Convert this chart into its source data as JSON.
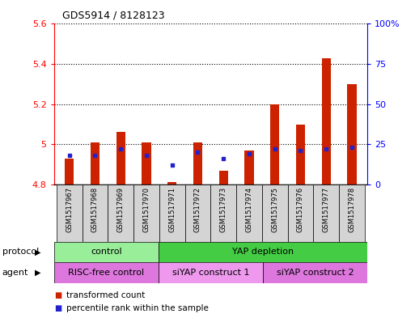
{
  "title": "GDS5914 / 8128123",
  "samples": [
    "GSM1517967",
    "GSM1517968",
    "GSM1517969",
    "GSM1517970",
    "GSM1517971",
    "GSM1517972",
    "GSM1517973",
    "GSM1517974",
    "GSM1517975",
    "GSM1517976",
    "GSM1517977",
    "GSM1517978"
  ],
  "transformed_count": [
    4.93,
    5.01,
    5.06,
    5.01,
    4.81,
    5.01,
    4.87,
    4.97,
    5.2,
    5.1,
    5.43,
    5.3
  ],
  "percentile_rank": [
    18,
    18,
    22,
    18,
    12,
    20,
    16,
    19,
    22,
    21,
    22,
    23
  ],
  "ylim_left": [
    4.8,
    5.6
  ],
  "ylim_right": [
    0,
    100
  ],
  "yticks_left": [
    4.8,
    5.0,
    5.2,
    5.4,
    5.6
  ],
  "ytick_labels_left": [
    "4.8",
    "5",
    "5.2",
    "5.4",
    "5.6"
  ],
  "yticks_right": [
    0,
    25,
    50,
    75,
    100
  ],
  "ytick_labels_right": [
    "0",
    "25",
    "50",
    "75",
    "100%"
  ],
  "bar_color": "#cc2200",
  "dot_color": "#2222cc",
  "bg_color": "#ffffff",
  "protocol_groups": [
    {
      "label": "control",
      "start": 0,
      "end": 3,
      "color": "#99ee99"
    },
    {
      "label": "YAP depletion",
      "start": 4,
      "end": 11,
      "color": "#44cc44"
    }
  ],
  "agent_groups": [
    {
      "label": "RISC-free control",
      "start": 0,
      "end": 3,
      "color": "#dd77dd"
    },
    {
      "label": "siYAP construct 1",
      "start": 4,
      "end": 7,
      "color": "#ee99ee"
    },
    {
      "label": "siYAP construct 2",
      "start": 8,
      "end": 11,
      "color": "#dd77dd"
    }
  ],
  "bar_width": 0.35,
  "grid_yticks": [
    5.0,
    5.2,
    5.4
  ],
  "dotted_line_color": "#000000"
}
